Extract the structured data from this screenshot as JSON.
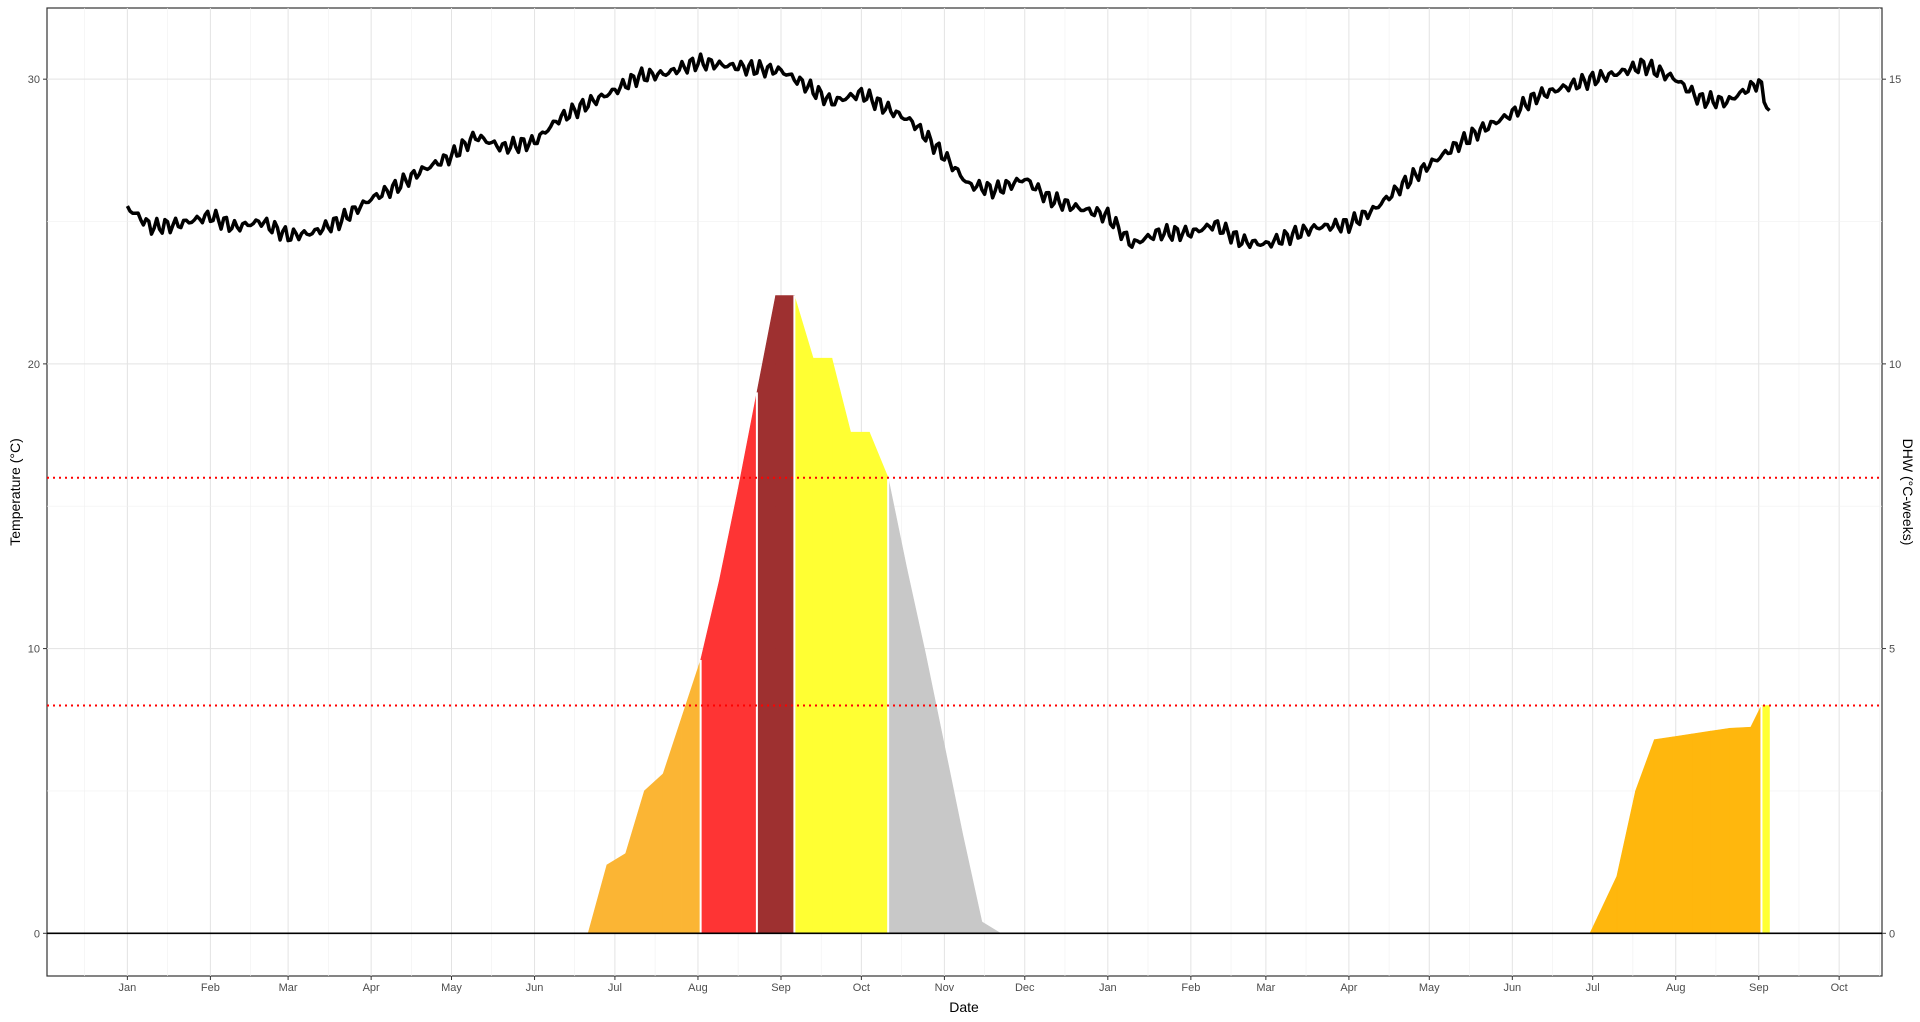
{
  "chart_data": {
    "type": "area",
    "xlabel": "Date",
    "ylabel_left": "Temperature (°C)",
    "ylabel_right": "DHW (°C-weeks)",
    "x_ticks": [
      "Jan",
      "Feb",
      "Mar",
      "Apr",
      "May",
      "Jun",
      "Jul",
      "Aug",
      "Sep",
      "Oct",
      "Nov",
      "Dec",
      "Jan",
      "Feb",
      "Mar",
      "Apr",
      "May",
      "Jun",
      "Jul",
      "Aug",
      "Sep",
      "Oct"
    ],
    "y_ticks_left": [
      0,
      10,
      20,
      30
    ],
    "y_ticks_right": [
      0,
      5,
      10,
      15
    ],
    "ylim_left": [
      -1.5,
      32.5
    ],
    "ylim_right": [
      -0.75,
      16.25
    ],
    "xlim": [
      "2023-12-02",
      "2025-10-17"
    ],
    "grid": true,
    "reference_lines": [
      {
        "value": 4,
        "axis": "right",
        "style": "dotted",
        "color": "#ff0000"
      },
      {
        "value": 8,
        "axis": "right",
        "style": "dotted",
        "color": "#ff0000"
      }
    ],
    "zero_line": {
      "value": 0,
      "color": "#000000"
    },
    "series": [
      {
        "type": "line",
        "axis": "left",
        "color": "#000000",
        "x": [
          "2024-01-01",
          "2024-01-10",
          "2024-01-20",
          "2024-02-01",
          "2024-02-10",
          "2024-02-20",
          "2024-03-01",
          "2024-03-10",
          "2024-03-20",
          "2024-04-01",
          "2024-04-10",
          "2024-04-20",
          "2024-05-01",
          "2024-05-10",
          "2024-05-20",
          "2024-06-01",
          "2024-06-10",
          "2024-06-20",
          "2024-07-01",
          "2024-07-10",
          "2024-07-20",
          "2024-08-01",
          "2024-08-10",
          "2024-08-20",
          "2024-09-01",
          "2024-09-10",
          "2024-09-20",
          "2024-10-01",
          "2024-10-10",
          "2024-10-20",
          "2024-11-01",
          "2024-11-10",
          "2024-11-20",
          "2024-12-01",
          "2024-12-10",
          "2024-12-20",
          "2025-01-01",
          "2025-01-10",
          "2025-01-20",
          "2025-02-01",
          "2025-02-10",
          "2025-02-20",
          "2025-03-01",
          "2025-03-10",
          "2025-03-20",
          "2025-04-01",
          "2025-04-10",
          "2025-04-20",
          "2025-05-01",
          "2025-05-10",
          "2025-05-20",
          "2025-06-01",
          "2025-06-10",
          "2025-06-20",
          "2025-07-01",
          "2025-07-10",
          "2025-07-20",
          "2025-08-01",
          "2025-08-10",
          "2025-08-20",
          "2025-09-01",
          "2025-09-05"
        ],
        "values": [
          25.5,
          24.8,
          24.9,
          25.2,
          24.8,
          25.0,
          24.5,
          24.6,
          25.0,
          25.8,
          26.2,
          26.8,
          27.3,
          28.0,
          27.6,
          27.8,
          28.6,
          29.1,
          29.6,
          30.1,
          30.2,
          30.6,
          30.5,
          30.4,
          30.3,
          29.8,
          29.2,
          29.5,
          29.0,
          28.5,
          27.3,
          26.3,
          26.1,
          26.5,
          25.8,
          25.5,
          25.2,
          24.2,
          24.6,
          24.6,
          24.9,
          24.3,
          24.2,
          24.5,
          24.8,
          24.9,
          25.4,
          26.2,
          27.0,
          27.6,
          28.2,
          28.8,
          29.4,
          29.7,
          30.0,
          30.2,
          30.5,
          30.0,
          29.3,
          29.2,
          29.9,
          28.9
        ]
      },
      {
        "type": "area",
        "axis": "right",
        "x": [
          "2024-06-21",
          "2024-06-28",
          "2024-07-05",
          "2024-07-12",
          "2024-07-19",
          "2024-07-26",
          "2024-08-02",
          "2024-08-09",
          "2024-08-16",
          "2024-08-23",
          "2024-08-30",
          "2024-09-06",
          "2024-09-13",
          "2024-09-20",
          "2024-09-27",
          "2024-10-04",
          "2024-10-11",
          "2024-10-18",
          "2024-10-25",
          "2024-11-01",
          "2024-11-08",
          "2024-11-15",
          "2024-11-22"
        ],
        "values": [
          0,
          1.2,
          1.4,
          2.5,
          2.8,
          3.8,
          4.8,
          6.2,
          7.8,
          9.5,
          11.2,
          11.2,
          10.1,
          10.1,
          8.8,
          8.8,
          8.0,
          6.4,
          4.9,
          3.3,
          1.7,
          0.2,
          0
        ],
        "colors": [
          "#fbb534",
          "#fbb534",
          "#fbb534",
          "#fbb534",
          "#fbb534",
          "#fbb534",
          "#fe3434",
          "#fe3434",
          "#fe3434",
          "#9e3030",
          "#9e3030",
          "#ffff33",
          "#ffff33",
          "#ffff33",
          "#ffff33",
          "#ffff33",
          "#c8c8c8",
          "#c8c8c8",
          "#c8c8c8",
          "#c8c8c8",
          "#c8c8c8",
          "#c8c8c8",
          "#c8c8c8"
        ]
      },
      {
        "type": "area",
        "axis": "right",
        "x": [
          "2025-06-30",
          "2025-07-03",
          "2025-07-10",
          "2025-07-17",
          "2025-07-24",
          "2025-07-31",
          "2025-08-07",
          "2025-08-14",
          "2025-08-21",
          "2025-08-29",
          "2025-09-02",
          "2025-09-05"
        ],
        "values": [
          0,
          0.3,
          1.0,
          2.5,
          3.4,
          3.45,
          3.5,
          3.55,
          3.6,
          3.62,
          4.0,
          4.0
        ],
        "colors": [
          "#ffb70d",
          "#ffb70d",
          "#ffb70d",
          "#ffb70d",
          "#ffb70d",
          "#ffb70d",
          "#ffb70d",
          "#ffb70d",
          "#ffb70d",
          "#ffb70d",
          "#ffff33",
          "#c8c8c8"
        ]
      }
    ]
  }
}
